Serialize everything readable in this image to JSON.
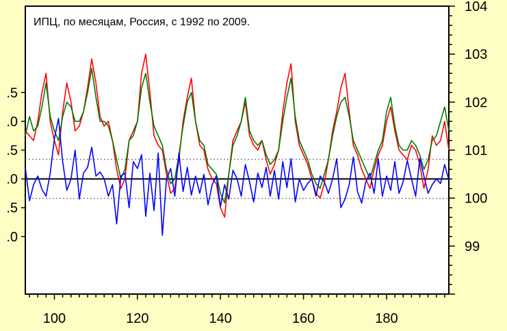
{
  "chart_data": {
    "type": "line",
    "title": "ИПЦ, по месяцам, Россия, с 1992 по 2009.",
    "x_range": [
      93,
      195
    ],
    "x_ticks": [
      "100",
      "120",
      "140",
      "160",
      "180"
    ],
    "x_tick_values": [
      100,
      120,
      140,
      160,
      180
    ],
    "right_axis": {
      "range": [
        98,
        104
      ],
      "ticks": [
        "104",
        "103",
        "102",
        "101",
        "100",
        "99"
      ],
      "tick_values": [
        104,
        103,
        102,
        101,
        100,
        99
      ]
    },
    "left_axis": {
      "range": [
        -2.0,
        3.0
      ],
      "ticks": [
        ".5",
        ".0",
        ".5",
        ".0",
        ".5",
        ".0"
      ],
      "tick_values": [
        1.5,
        1.0,
        0.5,
        0.0,
        -0.5,
        -1.0
      ]
    },
    "reference_lines": {
      "zero": 0.0,
      "upper_dotted": 0.34,
      "lower_dotted": -0.34
    },
    "series": [
      {
        "color": "#ff0000",
        "axis": "right",
        "x": [
          93,
          94,
          95,
          96,
          97,
          98,
          99,
          100,
          101,
          102,
          103,
          104,
          105,
          106,
          107,
          108,
          109,
          110,
          111,
          112,
          113,
          114,
          115,
          116,
          117,
          118,
          119,
          120,
          121,
          122,
          123,
          124,
          125,
          126,
          127,
          128,
          129,
          130,
          131,
          132,
          133,
          134,
          135,
          136,
          137,
          138,
          139,
          140,
          141,
          142,
          143,
          144,
          145,
          146,
          147,
          148,
          149,
          150,
          151,
          152,
          153,
          154,
          155,
          156,
          157,
          158,
          159,
          160,
          161,
          162,
          163,
          164,
          165,
          166,
          167,
          168,
          169,
          170,
          171,
          172,
          173,
          174,
          175,
          176,
          177,
          178,
          179,
          180,
          181,
          182,
          183,
          184,
          185,
          186,
          187,
          188,
          189,
          190,
          191,
          192,
          193,
          194,
          195
        ],
        "values": [
          101.4,
          101.3,
          101.2,
          101.6,
          102.2,
          102.6,
          101.6,
          101.2,
          100.9,
          101.8,
          102.4,
          102.0,
          101.4,
          101.5,
          101.8,
          102.3,
          102.9,
          102.4,
          101.7,
          101.5,
          101.6,
          101.2,
          100.6,
          100.2,
          100.4,
          101.2,
          101.4,
          101.6,
          102.6,
          103.0,
          102.2,
          101.3,
          101.1,
          101.0,
          100.5,
          100.1,
          100.2,
          100.8,
          101.6,
          102.1,
          102.5,
          101.6,
          101.1,
          101.0,
          100.6,
          100.4,
          100.3,
          99.8,
          99.6,
          100.5,
          101.2,
          101.4,
          101.6,
          102.0,
          101.3,
          101.1,
          101.0,
          101.2,
          100.8,
          100.5,
          100.7,
          101.0,
          101.8,
          102.4,
          102.8,
          101.6,
          101.1,
          100.9,
          100.7,
          100.4,
          100.1,
          100.0,
          100.3,
          100.8,
          101.4,
          101.8,
          102.3,
          102.6,
          101.8,
          101.1,
          100.9,
          100.6,
          100.4,
          100.2,
          100.6,
          100.9,
          101.1,
          101.6,
          101.9,
          101.4,
          101.0,
          100.9,
          100.8,
          101.1,
          101.0,
          100.7,
          100.2,
          100.6,
          101.3,
          101.1,
          101.2,
          101.6,
          101.0
        ],
        "name": ""
      },
      {
        "color": "#007a00",
        "axis": "right",
        "x": [
          93,
          94,
          95,
          96,
          97,
          98,
          99,
          100,
          101,
          102,
          103,
          104,
          105,
          106,
          107,
          108,
          109,
          110,
          111,
          112,
          113,
          114,
          115,
          116,
          117,
          118,
          119,
          120,
          121,
          122,
          123,
          124,
          125,
          126,
          127,
          128,
          129,
          130,
          131,
          132,
          133,
          134,
          135,
          136,
          137,
          138,
          139,
          140,
          141,
          142,
          143,
          144,
          145,
          146,
          147,
          148,
          149,
          150,
          151,
          152,
          153,
          154,
          155,
          156,
          157,
          158,
          159,
          160,
          161,
          162,
          163,
          164,
          165,
          166,
          167,
          168,
          169,
          170,
          171,
          172,
          173,
          174,
          175,
          176,
          177,
          178,
          179,
          180,
          181,
          182,
          183,
          184,
          185,
          186,
          187,
          188,
          189,
          190,
          191,
          192,
          193,
          194,
          195
        ],
        "values": [
          101.3,
          101.7,
          101.4,
          101.5,
          101.9,
          102.4,
          101.7,
          101.4,
          101.2,
          101.7,
          102.0,
          101.9,
          101.6,
          101.6,
          101.8,
          102.2,
          102.7,
          102.1,
          101.6,
          101.6,
          101.5,
          101.2,
          100.8,
          100.4,
          100.6,
          101.2,
          101.3,
          101.6,
          102.3,
          102.6,
          102.0,
          101.5,
          101.3,
          101.1,
          100.6,
          100.3,
          100.4,
          100.9,
          101.5,
          102.0,
          102.2,
          101.6,
          101.2,
          101.1,
          100.7,
          100.6,
          100.5,
          100.1,
          99.9,
          100.5,
          101.1,
          101.3,
          101.6,
          102.1,
          101.4,
          101.2,
          101.1,
          101.2,
          100.9,
          100.7,
          100.8,
          101.0,
          101.6,
          102.1,
          102.5,
          101.7,
          101.2,
          101.0,
          100.8,
          100.5,
          100.3,
          100.2,
          100.5,
          100.8,
          101.3,
          101.7,
          102.0,
          102.1,
          101.7,
          101.2,
          101.0,
          100.8,
          100.6,
          100.4,
          100.7,
          101.0,
          101.2,
          101.8,
          102.1,
          101.5,
          101.1,
          101.0,
          101.0,
          101.2,
          101.1,
          100.9,
          100.6,
          100.8,
          101.2,
          101.3,
          101.6,
          101.9,
          101.4
        ],
        "name": ""
      },
      {
        "color": "#0000ff",
        "axis": "left",
        "x": [
          93,
          94,
          95,
          96,
          97,
          98,
          99,
          100,
          101,
          102,
          103,
          104,
          105,
          106,
          107,
          108,
          109,
          110,
          111,
          112,
          113,
          114,
          115,
          116,
          117,
          118,
          119,
          120,
          121,
          122,
          123,
          124,
          125,
          126,
          127,
          128,
          129,
          130,
          131,
          132,
          133,
          134,
          135,
          136,
          137,
          138,
          139,
          140,
          141,
          142,
          143,
          144,
          145,
          146,
          147,
          148,
          149,
          150,
          151,
          152,
          153,
          154,
          155,
          156,
          157,
          158,
          159,
          160,
          161,
          162,
          163,
          164,
          165,
          166,
          167,
          168,
          169,
          170,
          171,
          172,
          173,
          174,
          175,
          176,
          177,
          178,
          179,
          180,
          181,
          182,
          183,
          184,
          185,
          186,
          187,
          188,
          189,
          190,
          191,
          192,
          193,
          194,
          195
        ],
        "values": [
          0.2,
          -0.38,
          -0.1,
          0.05,
          -0.18,
          -0.3,
          0.1,
          0.7,
          1.05,
          0.3,
          -0.2,
          0.0,
          0.5,
          -0.35,
          0.1,
          0.2,
          0.55,
          0.05,
          0.12,
          0.0,
          -0.3,
          -0.1,
          -0.78,
          0.05,
          0.1,
          -0.5,
          0.3,
          0.18,
          0.42,
          -0.65,
          0.1,
          -0.55,
          0.45,
          -0.98,
          0.0,
          0.18,
          -0.3,
          0.45,
          -0.22,
          0.2,
          -0.28,
          0.05,
          -0.25,
          0.08,
          -0.45,
          -0.1,
          0.05,
          -0.48,
          -0.1,
          -0.35,
          0.15,
          0.0,
          -0.3,
          0.25,
          -0.05,
          -0.4,
          0.1,
          -0.15,
          0.2,
          -0.3,
          0.15,
          -0.35,
          0.3,
          -0.15,
          0.35,
          -0.4,
          0.0,
          -0.2,
          -0.08,
          0.0,
          -0.3,
          0.05,
          -0.05,
          -0.25,
          0.0,
          0.35,
          -0.5,
          -0.35,
          -0.1,
          0.38,
          -0.22,
          -0.42,
          -0.05,
          0.1,
          -0.25,
          0.35,
          -0.3,
          0.05,
          -0.2,
          0.3,
          -0.25,
          -0.05,
          0.32,
          0.0,
          -0.3,
          0.35,
          0.05,
          -0.25,
          -0.1,
          0.0,
          -0.08,
          0.25,
          -0.02
        ],
        "name": ""
      }
    ],
    "grid": false,
    "legend": "none"
  }
}
